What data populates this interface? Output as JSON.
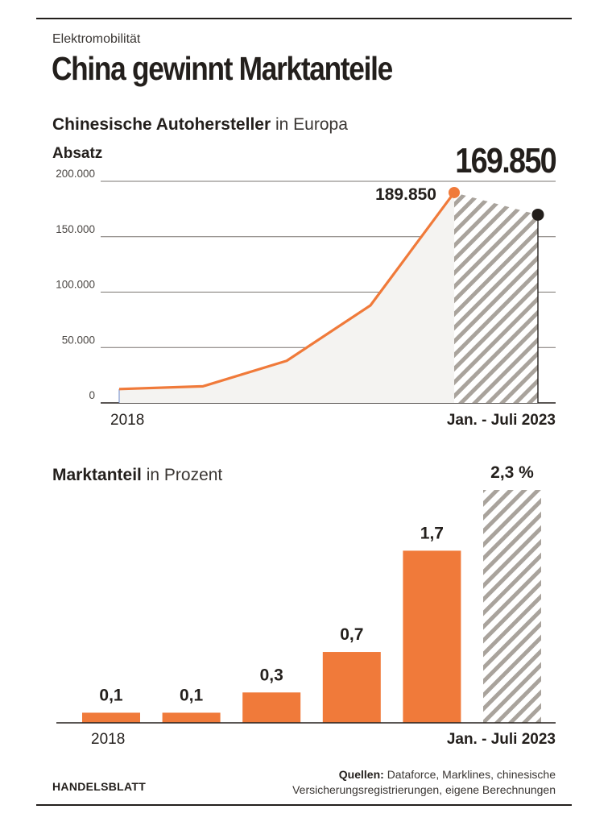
{
  "header": {
    "kicker": "Elektromobilität",
    "title": "China gewinnt Marktanteile"
  },
  "chart1_heading": {
    "bold": "Chinesische Autohersteller",
    "rest": "in Europa"
  },
  "chart2_heading": {
    "bold": "Marktanteil",
    "rest": "in Prozent"
  },
  "footer": {
    "brand": "HANDELSBLATT",
    "source_label": "Quellen:",
    "source_line1": "Dataforce, Marklines, chinesische",
    "source_line2": "Versicherungsregistrierungen, eigene Berechnungen"
  },
  "colors": {
    "accent": "#f07a3a",
    "dark": "#231f1c",
    "hatch": "#a9a39c",
    "area": "#f4f3f1",
    "grid": "#7a7571"
  },
  "chart_data": [
    {
      "type": "line",
      "ylabel": "Absatz",
      "ylim": [
        0,
        200000
      ],
      "yticks": [
        0,
        50000,
        100000,
        150000,
        200000
      ],
      "ytick_labels": [
        "0",
        "50.000",
        "100.000",
        "150.000",
        "200.000"
      ],
      "x_labels": [
        "2018",
        "Jan. - Juli 2023"
      ],
      "series": [
        {
          "values": [
            12500,
            15000,
            38000,
            88000,
            189850
          ]
        }
      ],
      "projection": {
        "value": 169850,
        "label": "169.850",
        "style": "hatched"
      },
      "annotations": [
        {
          "point": "peak",
          "label": "189.850"
        }
      ],
      "grid": true
    },
    {
      "type": "bar",
      "values": [
        0.1,
        0.1,
        0.3,
        0.7,
        1.7,
        2.3
      ],
      "labels": [
        "0,1",
        "0,1",
        "0,3",
        "0,7",
        "1,7",
        "2,3 %"
      ],
      "styles": [
        "solid",
        "solid",
        "solid",
        "solid",
        "solid",
        "hatched"
      ],
      "x_labels": [
        "2018",
        "Jan. - Juli 2023"
      ],
      "ylim": [
        0,
        2.3
      ]
    }
  ]
}
